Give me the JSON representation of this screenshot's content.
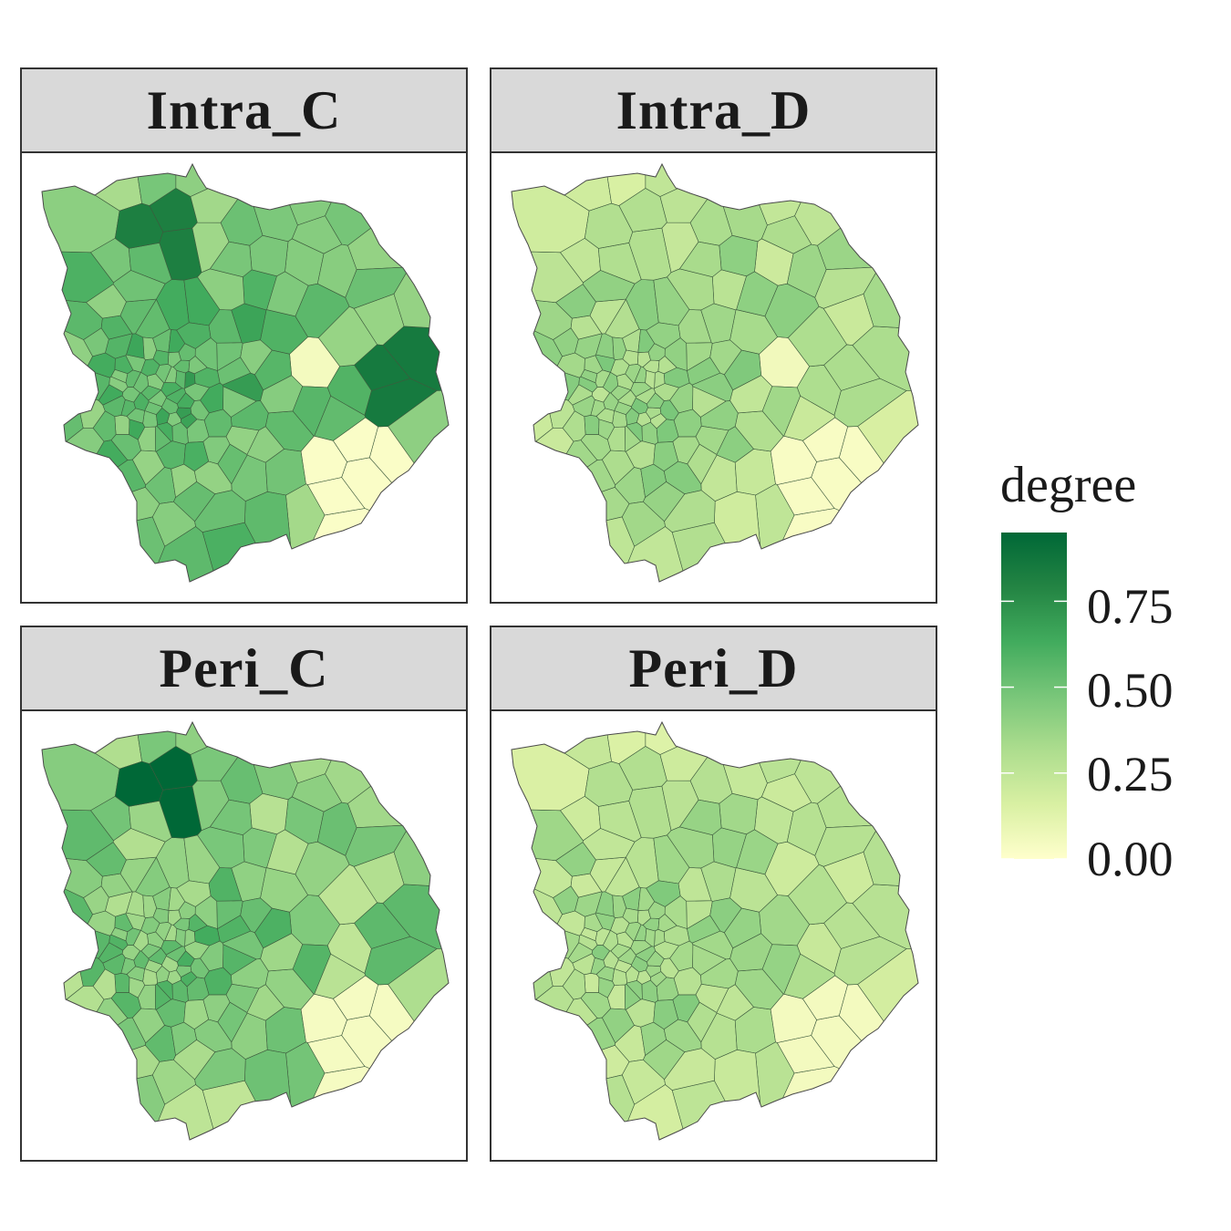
{
  "facets": [
    {
      "id": "intra_c",
      "label": "Intra_C",
      "center_value": 0.58,
      "spread": 0.28,
      "seed": 11,
      "highlights": {
        "north": 0.82,
        "east": 0.85,
        "southeast_pale": 0.02,
        "small_pale": 0.05
      }
    },
    {
      "id": "intra_d",
      "label": "Intra_D",
      "center_value": 0.4,
      "spread": 0.22,
      "seed": 23,
      "highlights": {
        "north": 0.3,
        "east": 0.32,
        "southeast_pale": 0.03,
        "small_pale": 0.06
      }
    },
    {
      "id": "peri_c",
      "label": "Peri_C",
      "center_value": 0.5,
      "spread": 0.3,
      "seed": 37,
      "highlights": {
        "north": 0.95,
        "east": 0.55,
        "southeast_pale": 0.04,
        "small_pale": 0.45
      }
    },
    {
      "id": "peri_d",
      "label": "Peri_D",
      "center_value": 0.38,
      "spread": 0.22,
      "seed": 53,
      "highlights": {
        "north": 0.3,
        "east": 0.28,
        "southeast_pale": 0.05,
        "small_pale": 0.35
      }
    }
  ],
  "legend": {
    "title": "degree",
    "min": 0.0,
    "max": 0.95,
    "ticks": [
      {
        "value": 0.75,
        "label": "0.75"
      },
      {
        "value": 0.5,
        "label": "0.50"
      },
      {
        "value": 0.25,
        "label": "0.25"
      },
      {
        "value": 0.0,
        "label": "0.00"
      }
    ],
    "palette": [
      "#ffffcc",
      "#d9f0a3",
      "#addd8e",
      "#78c679",
      "#41ab5d",
      "#238443",
      "#006837"
    ]
  }
}
